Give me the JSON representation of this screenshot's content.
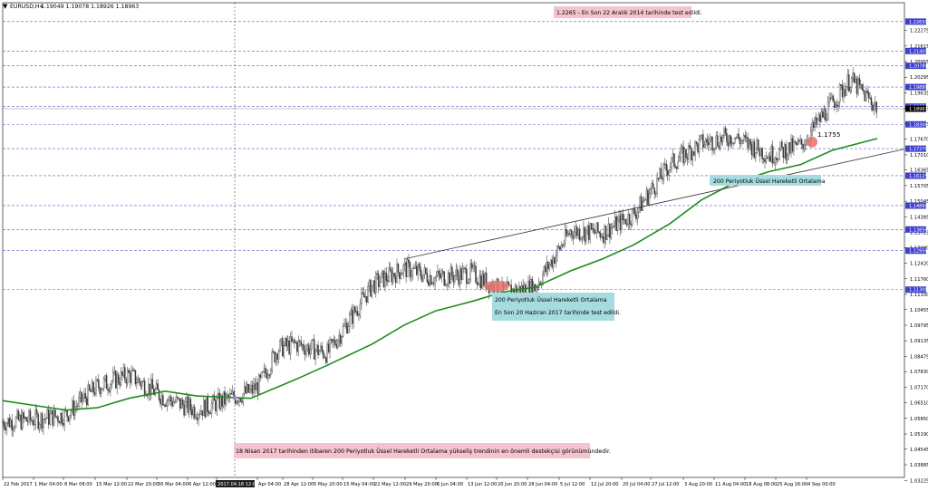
{
  "header": {
    "symbol_label": "EURUSD,H4",
    "ohlc_text": "1.19049 1.19078 1.18926 1.18963"
  },
  "colors": {
    "background": "#ffffff",
    "candles": "#3a3a3a",
    "ema_line": "#1e8c1e",
    "trendline": "#333333",
    "grid_dashed": "#5c5ccc",
    "price_tag": "#3f3fd0",
    "current_tag": "#000000",
    "note_pink": "#f4c3cd",
    "note_cyan": "#a6dcdf",
    "marker": "#e8776e"
  },
  "chart_data": {
    "type": "line",
    "title": "",
    "xlabel": "",
    "ylabel": "",
    "y_axis_side": "right",
    "grid": true,
    "ylim": [
      1.0335,
      1.2345
    ],
    "y_ticks": [
      "1.22275",
      "1.21615",
      "1.20955",
      "1.20295",
      "1.19635",
      "1.18975",
      "1.18315",
      "1.17670",
      "1.17010",
      "1.16365",
      "1.15705",
      "1.15045",
      "1.14385",
      "1.13725",
      "1.13080",
      "1.12420",
      "1.11760",
      "1.11100",
      "1.10455",
      "1.09795",
      "1.09135",
      "1.08475",
      "1.07830",
      "1.07170",
      "1.06510",
      "1.05850",
      "1.05190",
      "1.04545",
      "1.03885",
      "1.03225"
    ],
    "x_ticks": [
      "22 Feb 2017",
      "1 Mar 04:00",
      "8 Mar 08:00",
      "15 Mar 12:00",
      "22 Mar 20:00",
      "30 Mar 04:00",
      "6 Apr 12:00",
      "2017.04.18 12:00",
      "Apr 04:00",
      "28 Apr 12:00",
      "5 May 20:00",
      "15 May 04:00",
      "22 May 12:00",
      "29 May 20:00",
      "6 Jun 04:00",
      "13 Jun 12:00",
      "20 Jun 20:00",
      "28 Jun 04:00",
      "5 Jul 12:00",
      "12 Jul 20:00",
      "20 Jul 04:00",
      "27 Jul 12:00",
      "3 Aug 20:00",
      "11 Aug 04:00",
      "18 Aug 08:00",
      "25 Aug 16:00",
      "4 Sep 00:00"
    ],
    "highlighted_x_label": "2017.04.18 12:00",
    "highlighted_levels": [
      "1.22650",
      "1.21405",
      "1.20780",
      "1.19880",
      "1.19050",
      "1.18300",
      "1.17270",
      "1.16125",
      "1.14860",
      "1.13850",
      "1.12950",
      "1.11300"
    ],
    "current_price": "1.18963",
    "series": [
      {
        "name": "EURUSD H4 close",
        "x": [
          "22 Feb 2017",
          "1 Mar 2017",
          "8 Mar 2017",
          "15 Mar 2017",
          "22 Mar 2017",
          "30 Mar 2017",
          "6 Apr 2017",
          "18 Apr 2017",
          "20 Apr 2017",
          "24 Apr 2017",
          "28 Apr 2017",
          "5 May 2017",
          "15 May 2017",
          "22 May 2017",
          "29 May 2017",
          "6 Jun 2017",
          "13 Jun 2017",
          "20 Jun 2017",
          "28 Jun 2017",
          "5 Jul 2017",
          "12 Jul 2017",
          "20 Jul 2017",
          "27 Jul 2017",
          "3 Aug 2017",
          "11 Aug 2017",
          "18 Aug 2017",
          "25 Aug 2017",
          "29 Aug 2017",
          "4 Sep 2017"
        ],
        "values": [
          1.057,
          1.058,
          1.06,
          1.072,
          1.077,
          1.067,
          1.062,
          1.07,
          1.073,
          1.088,
          1.09,
          1.086,
          1.115,
          1.122,
          1.118,
          1.12,
          1.112,
          1.114,
          1.138,
          1.137,
          1.145,
          1.166,
          1.175,
          1.178,
          1.17,
          1.174,
          1.192,
          1.202,
          1.19
        ]
      },
      {
        "name": "200 Periyotluk Üssel Hareketli Ortalama",
        "x": [
          "22 Feb 2017",
          "1 Mar 2017",
          "8 Mar 2017",
          "15 Mar 2017",
          "22 Mar 2017",
          "30 Mar 2017",
          "6 Apr 2017",
          "18 Apr 2017",
          "28 Apr 2017",
          "5 May 2017",
          "15 May 2017",
          "22 May 2017",
          "29 May 2017",
          "6 Jun 2017",
          "13 Jun 2017",
          "20 Jun 2017",
          "28 Jun 2017",
          "5 Jul 2017",
          "12 Jul 2017",
          "20 Jul 2017",
          "27 Jul 2017",
          "3 Aug 2017",
          "11 Aug 2017",
          "18 Aug 2017",
          "25 Aug 2017",
          "4 Sep 2017"
        ],
        "values": [
          1.066,
          1.064,
          1.062,
          1.063,
          1.067,
          1.07,
          1.068,
          1.067,
          1.075,
          1.081,
          1.09,
          1.098,
          1.104,
          1.108,
          1.112,
          1.114,
          1.121,
          1.126,
          1.132,
          1.141,
          1.151,
          1.158,
          1.163,
          1.166,
          1.172,
          1.177
        ]
      },
      {
        "name": "trendline",
        "x": [
          "22 May 2017",
          "6 Jun 2017",
          "20 Jun 2017",
          "5 Jul 2017",
          "20 Jul 2017",
          "3 Aug 2017",
          "18 Aug 2017",
          "4 Sep 2017"
        ],
        "values": [
          1.126,
          1.1305,
          1.1355,
          1.1405,
          1.1462,
          1.152,
          1.159,
          1.17
        ]
      }
    ],
    "annotations": [
      {
        "name": "top-note",
        "text": "1.2265 - En Son 22 Aralık 2014 tarihinde test edildi."
      },
      {
        "name": "ema-legend",
        "text": "200 Periyotluk Üssel Hareketli Ortalama"
      },
      {
        "name": "june-note-1",
        "text": "200 Periyotluk Üssel Hareketli Ortalama"
      },
      {
        "name": "june-note-2",
        "text": "En Son 20 Haziran 2017 tarihinde test edildi."
      },
      {
        "name": "april-note",
        "text": "18 Nisan 2017 tarihinden itibaren 200 Periyotluk Üssel Hareketli Ortalama yükseliş trendinin en önemli destekçisi görünümündedir."
      },
      {
        "name": "level-label",
        "text": "1.1755"
      }
    ]
  }
}
